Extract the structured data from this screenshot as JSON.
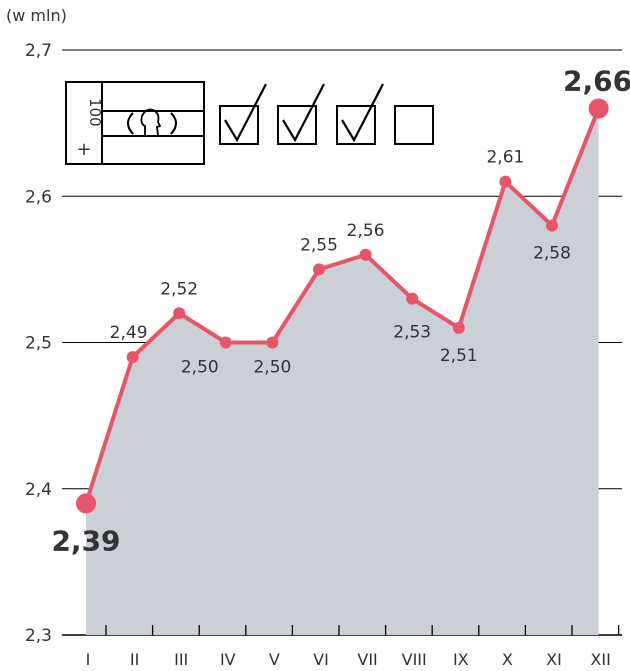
{
  "chart_data": {
    "type": "area",
    "unit_label": "(w mln)",
    "categories": [
      "I",
      "II",
      "III",
      "IV",
      "V",
      "VI",
      "VII",
      "VIII",
      "IX",
      "X",
      "XI",
      "XII"
    ],
    "values": [
      2.39,
      2.49,
      2.52,
      2.5,
      2.5,
      2.55,
      2.56,
      2.53,
      2.51,
      2.61,
      2.58,
      2.66
    ],
    "value_labels": [
      "2,39",
      "2,49",
      "2,52",
      "2,50",
      "2,50",
      "2,55",
      "2,56",
      "2,53",
      "2,51",
      "2,61",
      "2,58",
      "2,66"
    ],
    "y_ticks": [
      2.3,
      2.4,
      2.5,
      2.6,
      2.7
    ],
    "y_tick_labels": [
      "2,3",
      "2,4",
      "2,5",
      "2,6",
      "2,7"
    ],
    "ylim": [
      2.3,
      2.7
    ],
    "grid": true,
    "line_color": "#e8546a",
    "area_color": "#cbcfd6",
    "grid_color": "#000000"
  },
  "icon": {
    "name": "ballot-card-with-checkboxes-icon",
    "card_text": "100",
    "card_sign": "+",
    "checked_boxes": 3,
    "empty_boxes": 1
  }
}
